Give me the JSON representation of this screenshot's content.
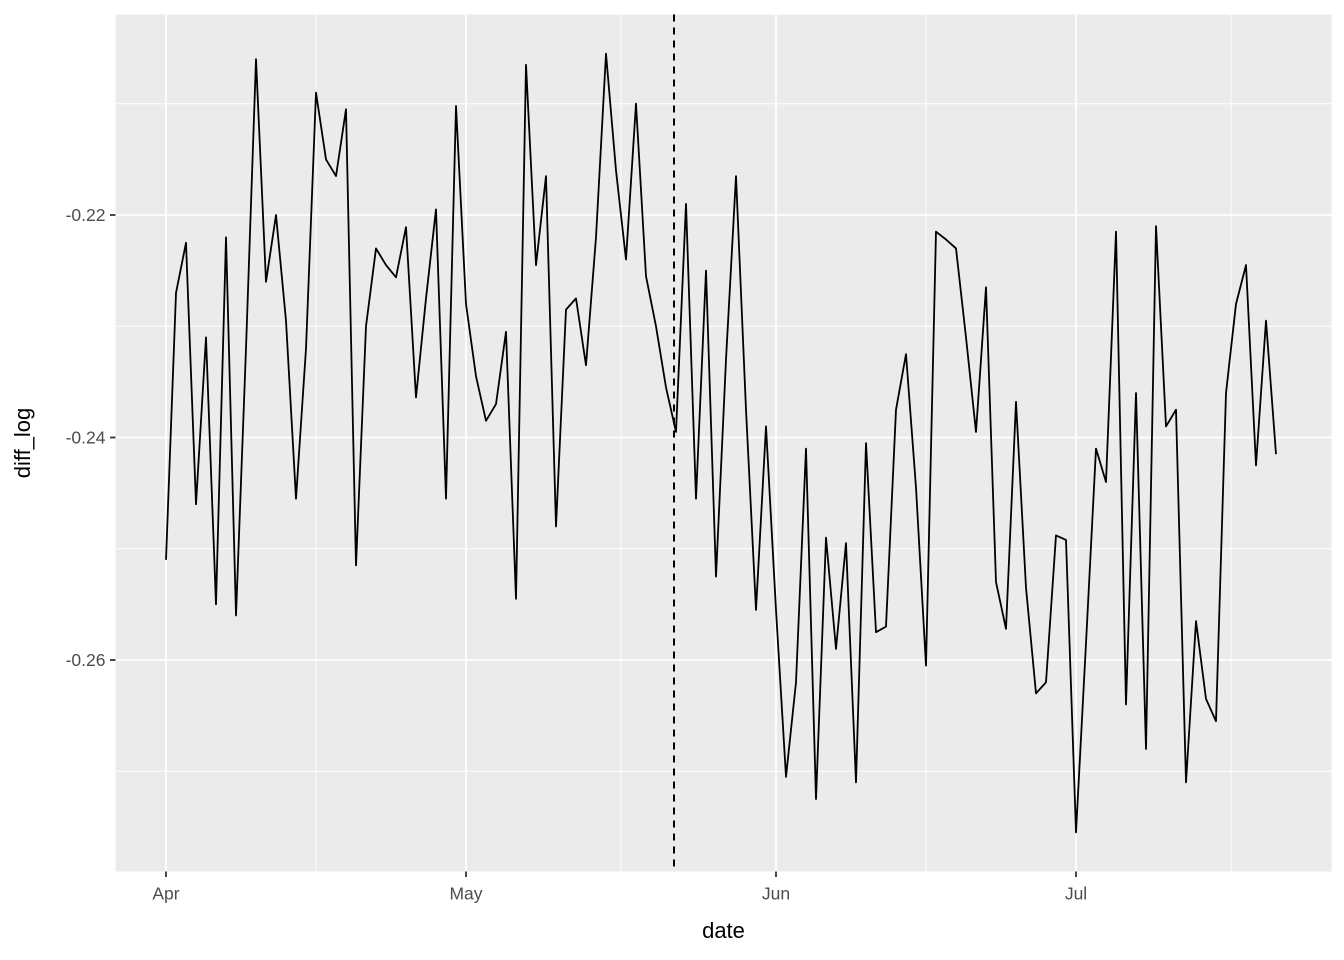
{
  "chart_data": {
    "type": "line",
    "title": "",
    "xlabel": "date",
    "ylabel": "diff_log",
    "legend": "none",
    "grid": "on",
    "panel_background": "#EBEBEB",
    "grid_color": "#FFFFFF",
    "line_color": "#000000",
    "axis_text_color": "#4D4D4D",
    "tick_mark_color": "#333333",
    "x_tick_labels": [
      "Apr",
      "May",
      "Jun",
      "Jul"
    ],
    "x_major_day_index": [
      0,
      30,
      61,
      91
    ],
    "x_minor_day_index": [
      15,
      45.5,
      76,
      106.5
    ],
    "y_tick_labels": [
      "-0.22",
      "-0.24",
      "-0.26"
    ],
    "y_major": [
      -0.22,
      -0.24,
      -0.26
    ],
    "y_minor": [
      -0.21,
      -0.23,
      -0.25,
      -0.27
    ],
    "ylim": [
      -0.279,
      -0.2015
    ],
    "vline": {
      "day_index": 50.8,
      "at_date": "May 22",
      "style": "dashed",
      "color": "#000000"
    },
    "dates": [
      "Apr 1",
      "Apr 2",
      "Apr 3",
      "Apr 4",
      "Apr 5",
      "Apr 6",
      "Apr 7",
      "Apr 8",
      "Apr 9",
      "Apr 10",
      "Apr 11",
      "Apr 12",
      "Apr 13",
      "Apr 14",
      "Apr 15",
      "Apr 16",
      "Apr 17",
      "Apr 18",
      "Apr 19",
      "Apr 20",
      "Apr 21",
      "Apr 22",
      "Apr 23",
      "Apr 24",
      "Apr 25",
      "Apr 26",
      "Apr 27",
      "Apr 28",
      "Apr 29",
      "Apr 30",
      "May 1",
      "May 2",
      "May 3",
      "May 4",
      "May 5",
      "May 6",
      "May 7",
      "May 8",
      "May 9",
      "May 10",
      "May 11",
      "May 12",
      "May 13",
      "May 14",
      "May 15",
      "May 16",
      "May 17",
      "May 18",
      "May 19",
      "May 20",
      "May 21",
      "May 22",
      "May 23",
      "May 24",
      "May 25",
      "May 26",
      "May 27",
      "May 28",
      "May 29",
      "May 30",
      "May 31",
      "Jun 1",
      "Jun 2",
      "Jun 3",
      "Jun 4",
      "Jun 5",
      "Jun 6",
      "Jun 7",
      "Jun 8",
      "Jun 9",
      "Jun 10",
      "Jun 11",
      "Jun 12",
      "Jun 13",
      "Jun 14",
      "Jun 15",
      "Jun 16",
      "Jun 17",
      "Jun 18",
      "Jun 19",
      "Jun 20",
      "Jun 21",
      "Jun 22",
      "Jun 23",
      "Jun 24",
      "Jun 25",
      "Jun 26",
      "Jun 27",
      "Jun 28",
      "Jun 29",
      "Jun 30",
      "Jul 1",
      "Jul 2",
      "Jul 3",
      "Jul 4",
      "Jul 5",
      "Jul 6",
      "Jul 7",
      "Jul 8",
      "Jul 9",
      "Jul 10",
      "Jul 11",
      "Jul 12",
      "Jul 13",
      "Jul 14",
      "Jul 15",
      "Jul 16",
      "Jul 17",
      "Jul 18",
      "Jul 19",
      "Jul 20",
      "Jul 21"
    ],
    "values": [
      -0.251,
      -0.227,
      -0.2225,
      -0.246,
      -0.231,
      -0.255,
      -0.222,
      -0.256,
      -0.232,
      -0.206,
      -0.226,
      -0.22,
      -0.2295,
      -0.2455,
      -0.232,
      -0.209,
      -0.215,
      -0.2165,
      -0.2105,
      -0.2515,
      -0.23,
      -0.223,
      -0.2245,
      -0.2256,
      -0.2211,
      -0.2364,
      -0.2275,
      -0.2195,
      -0.2455,
      -0.2102,
      -0.228,
      -0.2345,
      -0.2385,
      -0.237,
      -0.2305,
      -0.2545,
      -0.2065,
      -0.2245,
      -0.2165,
      -0.248,
      -0.2285,
      -0.2275,
      -0.2335,
      -0.222,
      -0.2055,
      -0.216,
      -0.224,
      -0.21,
      -0.2255,
      -0.23,
      -0.2355,
      -0.2395,
      -0.219,
      -0.2455,
      -0.225,
      -0.2525,
      -0.233,
      -0.2165,
      -0.2375,
      -0.2555,
      -0.239,
      -0.2555,
      -0.2705,
      -0.262,
      -0.241,
      -0.2725,
      -0.249,
      -0.259,
      -0.2495,
      -0.271,
      -0.2405,
      -0.2575,
      -0.257,
      -0.2375,
      -0.2325,
      -0.2445,
      -0.2605,
      -0.2215,
      -0.2222,
      -0.223,
      -0.231,
      -0.2395,
      -0.2265,
      -0.253,
      -0.2572,
      -0.2368,
      -0.2535,
      -0.263,
      -0.262,
      -0.2488,
      -0.2492,
      -0.2755,
      -0.2585,
      -0.241,
      -0.244,
      -0.2215,
      -0.264,
      -0.236,
      -0.268,
      -0.221,
      -0.239,
      -0.2375,
      -0.271,
      -0.2565,
      -0.2635,
      -0.2655,
      -0.236,
      -0.228,
      -0.2245,
      -0.2425,
      -0.2295,
      -0.2415
    ]
  }
}
